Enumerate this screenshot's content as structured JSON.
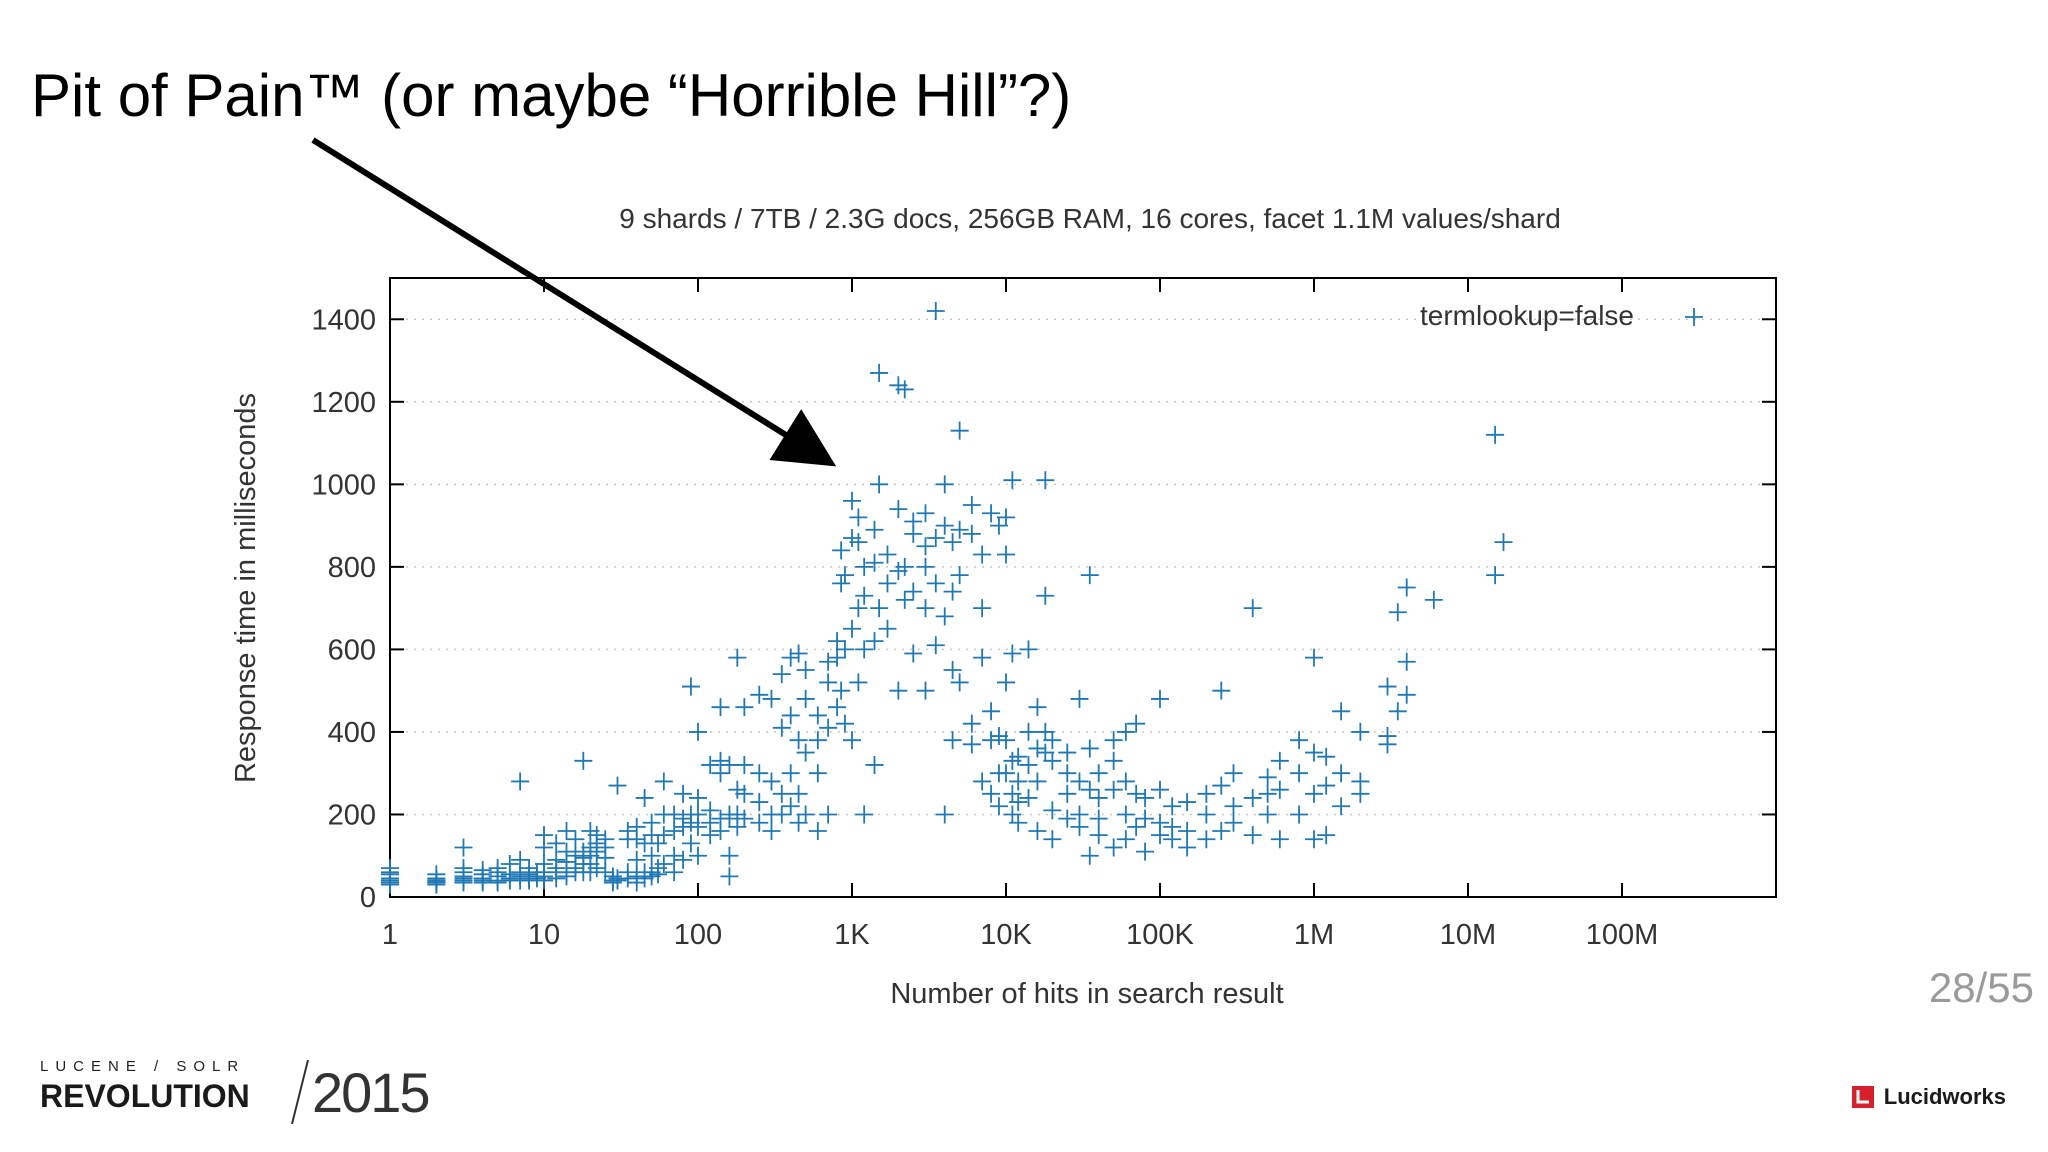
{
  "slide": {
    "title": "Pit of Pain™ (or maybe “Horrible Hill”?)",
    "page_number": "28/55",
    "event_series": "LUCENE / SOLR",
    "event_name": "REVOLUTION",
    "event_year": "2015",
    "brand_name": "Lucidworks",
    "colors": {
      "series": "#1f77b4",
      "arrow": "#000000",
      "axis": "#000000",
      "grid": "#c8c8c8",
      "text": "#333333",
      "page_number": "#9a9a9a",
      "brand_red": "#d6202b"
    }
  },
  "chart_data": {
    "type": "scatter",
    "title": "9 shards / 7TB / 2.3G docs, 256GB RAM, 16 cores, facet 1.1M values/shard",
    "xlabel": "Number of hits in search result",
    "ylabel": "Response time in milliseconds",
    "x_scale": "log",
    "xlim": [
      1,
      1000000000
    ],
    "ylim": [
      0,
      1500
    ],
    "x_ticks": [
      1,
      10,
      100,
      1000,
      10000,
      100000,
      1000000,
      10000000,
      100000000
    ],
    "x_tick_labels": [
      "1",
      "10",
      "100",
      "1K",
      "10K",
      "100K",
      "1M",
      "10M",
      "100M"
    ],
    "y_ticks": [
      0,
      200,
      400,
      600,
      800,
      1000,
      1200,
      1400
    ],
    "y_tick_labels": [
      "0",
      "200",
      "400",
      "600",
      "800",
      "1000",
      "1200",
      "1400"
    ],
    "grid": true,
    "legend_position": "top-right",
    "marker": "+",
    "series": [
      {
        "name": "termlookup=false"
      }
    ],
    "annotations": [
      {
        "type": "arrow",
        "from_text": "title",
        "to": [
          750,
          1050
        ]
      }
    ],
    "points": [
      [
        1,
        30
      ],
      [
        1,
        40
      ],
      [
        1,
        55
      ],
      [
        1,
        70
      ],
      [
        1,
        45
      ],
      [
        1,
        35
      ],
      [
        1,
        60
      ],
      [
        2,
        35
      ],
      [
        2,
        40
      ],
      [
        2,
        45
      ],
      [
        2,
        35
      ],
      [
        2,
        55
      ],
      [
        2,
        40
      ],
      [
        2,
        30
      ],
      [
        3,
        40
      ],
      [
        3,
        60
      ],
      [
        3,
        45
      ],
      [
        3,
        70
      ],
      [
        3,
        120
      ],
      [
        3,
        35
      ],
      [
        3,
        50
      ],
      [
        4,
        40
      ],
      [
        4,
        55
      ],
      [
        4,
        45
      ],
      [
        4,
        65
      ],
      [
        4,
        35
      ],
      [
        5,
        40
      ],
      [
        5,
        60
      ],
      [
        5,
        50
      ],
      [
        5,
        35
      ],
      [
        5,
        70
      ],
      [
        6,
        45
      ],
      [
        6,
        55
      ],
      [
        6,
        40
      ],
      [
        6,
        80
      ],
      [
        7,
        50
      ],
      [
        7,
        40
      ],
      [
        7,
        60
      ],
      [
        7,
        90
      ],
      [
        7,
        280
      ],
      [
        8,
        45
      ],
      [
        8,
        55
      ],
      [
        8,
        70
      ],
      [
        8,
        40
      ],
      [
        9,
        50
      ],
      [
        9,
        60
      ],
      [
        9,
        45
      ],
      [
        10,
        50
      ],
      [
        10,
        80
      ],
      [
        10,
        60
      ],
      [
        10,
        40
      ],
      [
        10,
        120
      ],
      [
        10,
        150
      ],
      [
        12,
        60
      ],
      [
        12,
        70
      ],
      [
        12,
        90
      ],
      [
        12,
        45
      ],
      [
        12,
        130
      ],
      [
        14,
        60
      ],
      [
        14,
        85
      ],
      [
        14,
        110
      ],
      [
        14,
        50
      ],
      [
        14,
        160
      ],
      [
        16,
        70
      ],
      [
        16,
        100
      ],
      [
        16,
        60
      ],
      [
        16,
        140
      ],
      [
        18,
        80
      ],
      [
        18,
        110
      ],
      [
        18,
        95
      ],
      [
        18,
        330
      ],
      [
        18,
        60
      ],
      [
        20,
        100
      ],
      [
        20,
        120
      ],
      [
        20,
        160
      ],
      [
        20,
        80
      ],
      [
        20,
        60
      ],
      [
        22,
        110
      ],
      [
        22,
        130
      ],
      [
        22,
        70
      ],
      [
        22,
        150
      ],
      [
        25,
        95
      ],
      [
        25,
        120
      ],
      [
        25,
        60
      ],
      [
        25,
        140
      ],
      [
        28,
        40
      ],
      [
        28,
        50
      ],
      [
        28,
        35
      ],
      [
        30,
        40
      ],
      [
        30,
        270
      ],
      [
        30,
        45
      ],
      [
        35,
        45
      ],
      [
        35,
        140
      ],
      [
        35,
        160
      ],
      [
        35,
        60
      ],
      [
        40,
        50
      ],
      [
        40,
        140
      ],
      [
        40,
        170
      ],
      [
        40,
        35
      ],
      [
        40,
        90
      ],
      [
        45,
        45
      ],
      [
        45,
        60
      ],
      [
        45,
        130
      ],
      [
        45,
        240
      ],
      [
        50,
        50
      ],
      [
        50,
        60
      ],
      [
        50,
        180
      ],
      [
        50,
        150
      ],
      [
        50,
        100
      ],
      [
        55,
        55
      ],
      [
        55,
        130
      ],
      [
        55,
        70
      ],
      [
        60,
        80
      ],
      [
        60,
        150
      ],
      [
        60,
        280
      ],
      [
        60,
        200
      ],
      [
        70,
        100
      ],
      [
        70,
        200
      ],
      [
        70,
        160
      ],
      [
        70,
        60
      ],
      [
        80,
        170
      ],
      [
        80,
        190
      ],
      [
        80,
        250
      ],
      [
        80,
        90
      ],
      [
        90,
        200
      ],
      [
        90,
        180
      ],
      [
        90,
        130
      ],
      [
        90,
        510
      ],
      [
        100,
        200
      ],
      [
        100,
        170
      ],
      [
        100,
        400
      ],
      [
        100,
        240
      ],
      [
        100,
        100
      ],
      [
        120,
        210
      ],
      [
        120,
        320
      ],
      [
        120,
        150
      ],
      [
        120,
        180
      ],
      [
        140,
        300
      ],
      [
        140,
        190
      ],
      [
        140,
        160
      ],
      [
        140,
        330
      ],
      [
        140,
        460
      ],
      [
        160,
        200
      ],
      [
        160,
        320
      ],
      [
        160,
        190
      ],
      [
        160,
        50
      ],
      [
        160,
        100
      ],
      [
        180,
        200
      ],
      [
        180,
        580
      ],
      [
        180,
        260
      ],
      [
        180,
        170
      ],
      [
        200,
        190
      ],
      [
        200,
        460
      ],
      [
        200,
        250
      ],
      [
        200,
        320
      ],
      [
        250,
        230
      ],
      [
        250,
        490
      ],
      [
        250,
        300
      ],
      [
        250,
        180
      ],
      [
        300,
        280
      ],
      [
        300,
        200
      ],
      [
        300,
        480
      ],
      [
        300,
        160
      ],
      [
        350,
        250
      ],
      [
        350,
        410
      ],
      [
        350,
        540
      ],
      [
        350,
        200
      ],
      [
        400,
        300
      ],
      [
        400,
        440
      ],
      [
        400,
        580
      ],
      [
        400,
        220
      ],
      [
        450,
        250
      ],
      [
        450,
        590
      ],
      [
        450,
        180
      ],
      [
        450,
        380
      ],
      [
        500,
        350
      ],
      [
        500,
        550
      ],
      [
        500,
        200
      ],
      [
        500,
        480
      ],
      [
        600,
        380
      ],
      [
        600,
        440
      ],
      [
        600,
        160
      ],
      [
        600,
        300
      ],
      [
        700,
        520
      ],
      [
        700,
        200
      ],
      [
        700,
        570
      ],
      [
        700,
        410
      ],
      [
        800,
        580
      ],
      [
        800,
        460
      ],
      [
        800,
        620
      ],
      [
        850,
        760
      ],
      [
        850,
        840
      ],
      [
        850,
        500
      ],
      [
        900,
        780
      ],
      [
        900,
        600
      ],
      [
        900,
        420
      ],
      [
        1000,
        960
      ],
      [
        1000,
        870
      ],
      [
        1000,
        650
      ],
      [
        1000,
        380
      ],
      [
        1100,
        920
      ],
      [
        1100,
        860
      ],
      [
        1100,
        700
      ],
      [
        1100,
        520
      ],
      [
        1200,
        800
      ],
      [
        1200,
        730
      ],
      [
        1200,
        600
      ],
      [
        1200,
        200
      ],
      [
        1400,
        890
      ],
      [
        1400,
        810
      ],
      [
        1400,
        620
      ],
      [
        1400,
        320
      ],
      [
        1500,
        1270
      ],
      [
        1500,
        1000
      ],
      [
        1500,
        700
      ],
      [
        1700,
        830
      ],
      [
        1700,
        760
      ],
      [
        1700,
        650
      ],
      [
        2000,
        1240
      ],
      [
        2000,
        940
      ],
      [
        2000,
        790
      ],
      [
        2000,
        500
      ],
      [
        2200,
        1230
      ],
      [
        2200,
        800
      ],
      [
        2200,
        720
      ],
      [
        2500,
        910
      ],
      [
        2500,
        880
      ],
      [
        2500,
        740
      ],
      [
        2500,
        590
      ],
      [
        3000,
        930
      ],
      [
        3000,
        850
      ],
      [
        3000,
        800
      ],
      [
        3000,
        700
      ],
      [
        3000,
        500
      ],
      [
        3500,
        1420
      ],
      [
        3500,
        870
      ],
      [
        3500,
        760
      ],
      [
        3500,
        610
      ],
      [
        4000,
        1000
      ],
      [
        4000,
        900
      ],
      [
        4000,
        680
      ],
      [
        4000,
        200
      ],
      [
        4500,
        860
      ],
      [
        4500,
        740
      ],
      [
        4500,
        550
      ],
      [
        4500,
        380
      ],
      [
        5000,
        1130
      ],
      [
        5000,
        890
      ],
      [
        5000,
        780
      ],
      [
        5000,
        520
      ],
      [
        6000,
        950
      ],
      [
        6000,
        880
      ],
      [
        6000,
        420
      ],
      [
        6000,
        370
      ],
      [
        7000,
        830
      ],
      [
        7000,
        700
      ],
      [
        7000,
        580
      ],
      [
        7000,
        280
      ],
      [
        8000,
        930
      ],
      [
        8000,
        450
      ],
      [
        8000,
        380
      ],
      [
        8000,
        250
      ],
      [
        9000,
        900
      ],
      [
        9000,
        390
      ],
      [
        9000,
        300
      ],
      [
        9000,
        220
      ],
      [
        10000,
        920
      ],
      [
        10000,
        830
      ],
      [
        10000,
        520
      ],
      [
        10000,
        380
      ],
      [
        10000,
        300
      ],
      [
        11000,
        1010
      ],
      [
        11000,
        590
      ],
      [
        11000,
        330
      ],
      [
        11000,
        250
      ],
      [
        11000,
        200
      ],
      [
        12000,
        340
      ],
      [
        12000,
        280
      ],
      [
        12000,
        230
      ],
      [
        12000,
        180
      ],
      [
        14000,
        600
      ],
      [
        14000,
        400
      ],
      [
        14000,
        320
      ],
      [
        14000,
        240
      ],
      [
        16000,
        460
      ],
      [
        16000,
        360
      ],
      [
        16000,
        280
      ],
      [
        16000,
        160
      ],
      [
        18000,
        1010
      ],
      [
        18000,
        730
      ],
      [
        18000,
        400
      ],
      [
        18000,
        350
      ],
      [
        20000,
        380
      ],
      [
        20000,
        330
      ],
      [
        20000,
        210
      ],
      [
        20000,
        140
      ],
      [
        25000,
        300
      ],
      [
        25000,
        250
      ],
      [
        25000,
        190
      ],
      [
        25000,
        350
      ],
      [
        30000,
        280
      ],
      [
        30000,
        200
      ],
      [
        30000,
        170
      ],
      [
        30000,
        480
      ],
      [
        35000,
        780
      ],
      [
        35000,
        360
      ],
      [
        35000,
        260
      ],
      [
        35000,
        100
      ],
      [
        40000,
        300
      ],
      [
        40000,
        240
      ],
      [
        40000,
        150
      ],
      [
        40000,
        190
      ],
      [
        50000,
        330
      ],
      [
        50000,
        260
      ],
      [
        50000,
        120
      ],
      [
        50000,
        380
      ],
      [
        60000,
        400
      ],
      [
        60000,
        280
      ],
      [
        60000,
        200
      ],
      [
        60000,
        140
      ],
      [
        70000,
        420
      ],
      [
        70000,
        250
      ],
      [
        70000,
        170
      ],
      [
        80000,
        240
      ],
      [
        80000,
        190
      ],
      [
        80000,
        110
      ],
      [
        100000,
        480
      ],
      [
        100000,
        260
      ],
      [
        100000,
        180
      ],
      [
        100000,
        150
      ],
      [
        120000,
        220
      ],
      [
        120000,
        170
      ],
      [
        120000,
        140
      ],
      [
        150000,
        230
      ],
      [
        150000,
        160
      ],
      [
        150000,
        120
      ],
      [
        200000,
        250
      ],
      [
        200000,
        200
      ],
      [
        200000,
        140
      ],
      [
        250000,
        500
      ],
      [
        250000,
        270
      ],
      [
        250000,
        160
      ],
      [
        300000,
        300
      ],
      [
        300000,
        220
      ],
      [
        300000,
        180
      ],
      [
        400000,
        700
      ],
      [
        400000,
        240
      ],
      [
        400000,
        150
      ],
      [
        500000,
        250
      ],
      [
        500000,
        200
      ],
      [
        500000,
        290
      ],
      [
        600000,
        330
      ],
      [
        600000,
        260
      ],
      [
        600000,
        140
      ],
      [
        800000,
        380
      ],
      [
        800000,
        300
      ],
      [
        800000,
        200
      ],
      [
        1000000,
        580
      ],
      [
        1000000,
        350
      ],
      [
        1000000,
        250
      ],
      [
        1000000,
        140
      ],
      [
        1200000,
        340
      ],
      [
        1200000,
        270
      ],
      [
        1200000,
        150
      ],
      [
        1500000,
        300
      ],
      [
        1500000,
        220
      ],
      [
        1500000,
        450
      ],
      [
        2000000,
        400
      ],
      [
        2000000,
        280
      ],
      [
        2000000,
        250
      ],
      [
        3000000,
        510
      ],
      [
        3000000,
        390
      ],
      [
        3000000,
        370
      ],
      [
        3500000,
        690
      ],
      [
        3500000,
        450
      ],
      [
        4000000,
        750
      ],
      [
        4000000,
        570
      ],
      [
        4000000,
        490
      ],
      [
        6000000,
        720
      ],
      [
        15000000,
        1120
      ],
      [
        15000000,
        780
      ],
      [
        17000000,
        860
      ]
    ]
  }
}
